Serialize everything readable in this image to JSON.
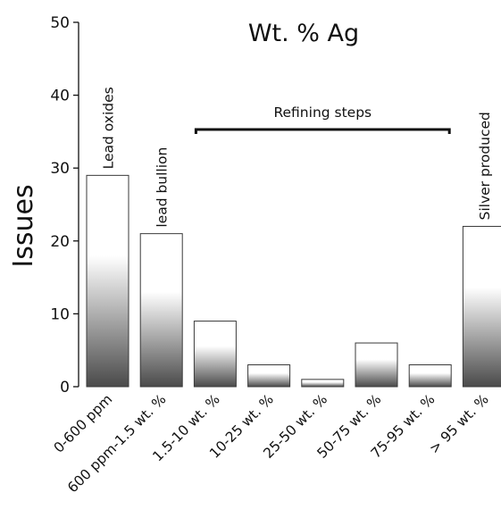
{
  "chart_data": {
    "type": "bar",
    "title": "Wt. % Ag",
    "xlabel": "",
    "ylabel": "Issues",
    "ylim": [
      0,
      50
    ],
    "yticks": [
      0,
      10,
      20,
      30,
      40,
      50
    ],
    "grid": false,
    "categories": [
      "0-600 ppm",
      "600 ppm-1.5 wt. %",
      "1.5-10 wt. %",
      "10-25 wt. %",
      "25-50 wt. %",
      "50-75 wt. %",
      "75-95 wt. %",
      "> 95 wt. %"
    ],
    "values": [
      29,
      21,
      9,
      3,
      1,
      6,
      3,
      22
    ],
    "bar_annotations": [
      {
        "category_index": 0,
        "text": "Lead oxides"
      },
      {
        "category_index": 1,
        "text": "lead bullion"
      },
      {
        "category_index": 7,
        "text": "Silver produced"
      }
    ],
    "bracket": {
      "text": "Refining steps",
      "from_index": 2,
      "to_index": 6
    }
  }
}
